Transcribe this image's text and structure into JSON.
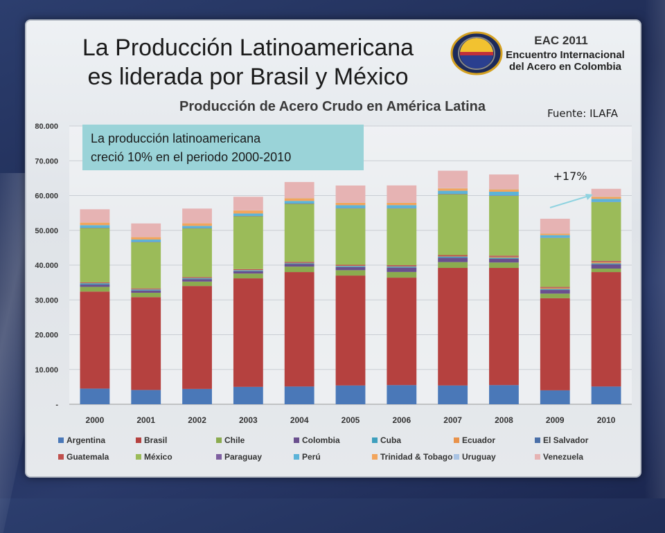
{
  "slide": {
    "title_line1": "La Producción Latinoamericana",
    "title_line2": "es liderada por Brasil y México",
    "logo_line1": "EAC 2011",
    "logo_line2": "Encuentro Internacional",
    "logo_line3": "del Acero en Colombia",
    "source": "Fuente: ILAFA",
    "callout_line1": "La producción latinoamericana",
    "callout_line2": "creció 10% en el periodo 2000-2010",
    "growth_label": "+17%"
  },
  "colors": {
    "Argentina": "#4a78b8",
    "Brasil": "#b5413f",
    "Chile": "#8bab4f",
    "Colombia": "#6a4f8e",
    "Cuba": "#3e9fbd",
    "Ecuador": "#e8924a",
    "El Salvador": "#4a6fa8",
    "Guatemala": "#c0504d",
    "México": "#9bbb59",
    "Paraguay": "#7e5fa0",
    "Perú": "#5cb3d8",
    "Trinidad & Tobago": "#f2a55c",
    "Uruguay": "#a9c3e3",
    "Venezuela": "#e6b3b3",
    "callout": "#9ad3d8",
    "arrow": "#8fd3e0"
  },
  "chart_data": {
    "type": "bar",
    "stacked": true,
    "title": "Producción de Acero Crudo en América Latina",
    "xlabel": "",
    "ylabel": "",
    "ylim": [
      0,
      80000
    ],
    "yticks": [
      "-",
      "10.000",
      "20.000",
      "30.000",
      "40.000",
      "50.000",
      "60.000",
      "70.000",
      "80.000"
    ],
    "categories": [
      "2000",
      "2001",
      "2002",
      "2003",
      "2004",
      "2005",
      "2006",
      "2007",
      "2008",
      "2009",
      "2010"
    ],
    "series": [
      {
        "name": "Argentina",
        "values": [
          4500,
          4100,
          4400,
          5000,
          5100,
          5400,
          5500,
          5400,
          5500,
          4000,
          5100
        ]
      },
      {
        "name": "Brasil",
        "values": [
          27900,
          26700,
          29600,
          31200,
          32900,
          31600,
          30900,
          33800,
          33700,
          26500,
          32900
        ]
      },
      {
        "name": "Chile",
        "values": [
          1350,
          1250,
          1270,
          1380,
          1570,
          1540,
          1630,
          1670,
          1550,
          1310,
          1010
        ]
      },
      {
        "name": "Colombia",
        "values": [
          660,
          640,
          660,
          670,
          730,
          880,
          1240,
          1270,
          1050,
          1050,
          1230
        ]
      },
      {
        "name": "Cuba",
        "values": [
          330,
          270,
          260,
          215,
          200,
          245,
          260,
          260,
          275,
          265,
          275
        ]
      },
      {
        "name": "Ecuador",
        "values": [
          60,
          62,
          77,
          80,
          84,
          86,
          89,
          90,
          255,
          290,
          360
        ]
      },
      {
        "name": "El Salvador",
        "values": [
          45,
          45,
          50,
          60,
          70,
          65,
          70,
          75,
          80,
          55,
          70
        ]
      },
      {
        "name": "Guatemala",
        "values": [
          200,
          230,
          230,
          240,
          260,
          280,
          300,
          320,
          310,
          250,
          260
        ]
      },
      {
        "name": "México",
        "values": [
          15600,
          13300,
          14000,
          15200,
          16700,
          16200,
          16300,
          17500,
          17200,
          14100,
          16900
        ]
      },
      {
        "name": "Paraguay",
        "values": [
          90,
          70,
          80,
          90,
          100,
          100,
          100,
          110,
          95,
          55,
          60
        ]
      },
      {
        "name": "Perú",
        "values": [
          750,
          690,
          650,
          700,
          750,
          830,
          850,
          880,
          1080,
          740,
          880
        ]
      },
      {
        "name": "Trinidad & Tobago",
        "values": [
          740,
          690,
          750,
          870,
          780,
          700,
          700,
          690,
          690,
          460,
          620
        ]
      },
      {
        "name": "Uruguay",
        "values": [
          35,
          35,
          30,
          40,
          50,
          60,
          70,
          75,
          75,
          60,
          70
        ]
      },
      {
        "name": "Venezuela",
        "values": [
          3800,
          3900,
          4200,
          3900,
          4600,
          4900,
          4900,
          5000,
          4200,
          4200,
          2200
        ]
      }
    ],
    "legend_position": "bottom"
  }
}
